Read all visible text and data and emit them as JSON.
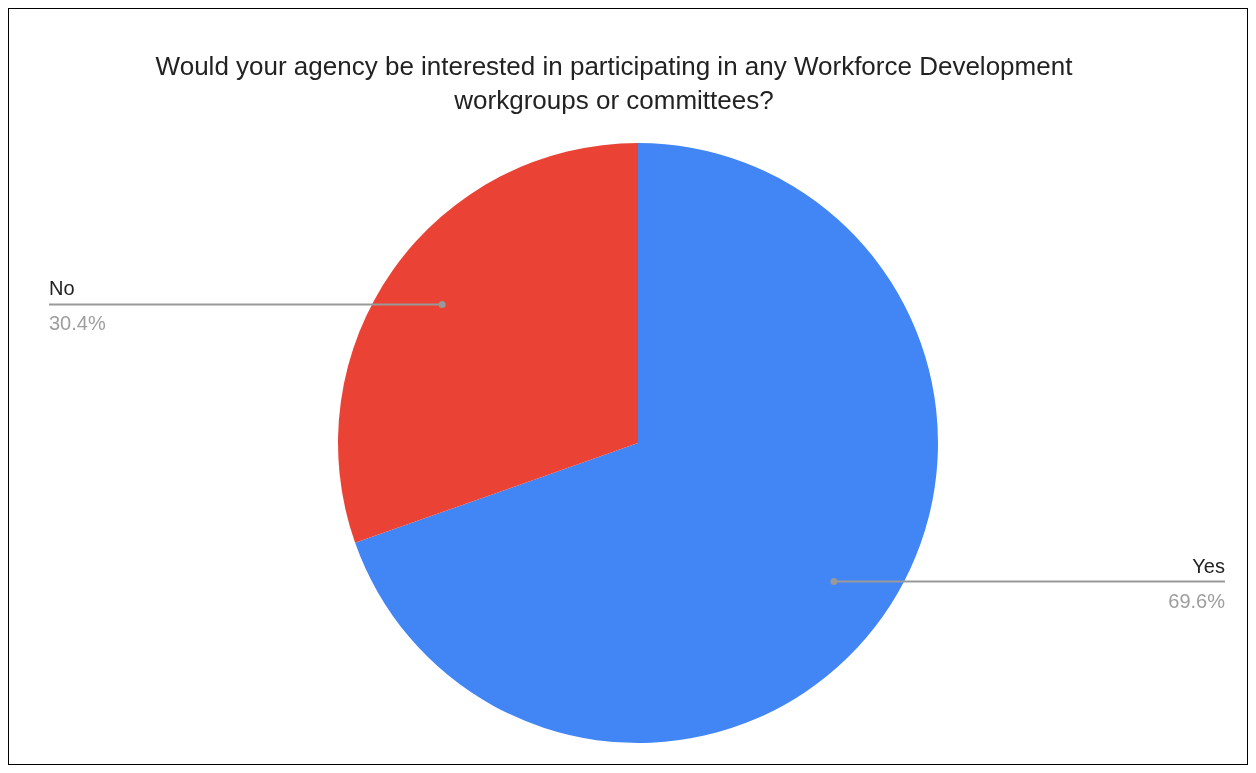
{
  "chart_data": {
    "type": "pie",
    "title": "Would your agency be interested in participating in any Workforce Development workgroups or committees?",
    "categories": [
      "Yes",
      "No"
    ],
    "values": [
      69.6,
      30.4
    ],
    "colors": [
      "#4285f4",
      "#ea4335"
    ],
    "value_labels": [
      "69.6%",
      "30.4%"
    ]
  }
}
